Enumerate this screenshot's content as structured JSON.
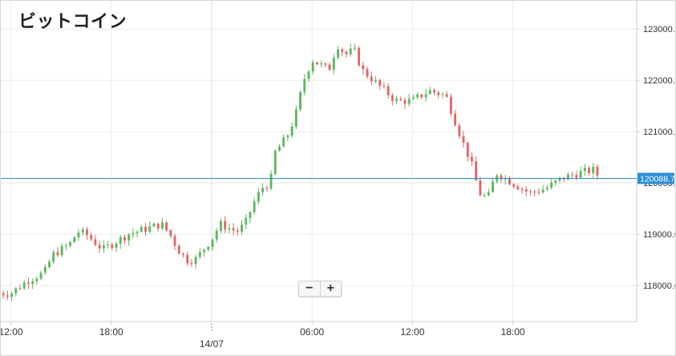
{
  "title": "ビットコイン",
  "zoom": {
    "minus_label": "−",
    "plus_label": "+"
  },
  "current_price": {
    "label": "120088.7",
    "value": 120088.7,
    "color": "#2a8fd4"
  },
  "colors": {
    "up": "#5cb85c",
    "down": "#e06666",
    "grid": "#ececec",
    "axis": "#cfcfcf",
    "price_line": "#2a8fd4"
  },
  "chart_data": {
    "type": "candlestick",
    "title": "ビットコイン",
    "y_axis": {
      "range": [
        117300,
        123550
      ],
      "ticks": [
        118000,
        119000,
        120000,
        121000,
        122000,
        123000
      ],
      "tick_labels": [
        "118000.0",
        "119000.0",
        "120000.0",
        "121000.0",
        "122000.0",
        "123000.0"
      ],
      "position": "right"
    },
    "x_axis": {
      "range_hours": [
        -12.6,
        25.4
      ],
      "ticks": [
        {
          "hour": -12,
          "label": "12:00"
        },
        {
          "hour": -6,
          "label": "18:00"
        },
        {
          "hour": 0,
          "label": "",
          "date": "14/07"
        },
        {
          "hour": 6,
          "label": "06:00"
        },
        {
          "hour": 12,
          "label": "12:00"
        },
        {
          "hour": 18,
          "label": "18:00"
        }
      ]
    },
    "grid": true,
    "anchors_close": [
      [
        -12.95,
        117850
      ],
      [
        -12.0,
        117850
      ],
      [
        -11.0,
        118100
      ],
      [
        -10.0,
        118250
      ],
      [
        -9.5,
        118600
      ],
      [
        -9.0,
        118700
      ],
      [
        -8.5,
        118800
      ],
      [
        -8.0,
        119050
      ],
      [
        -7.5,
        119000
      ],
      [
        -6.5,
        118700
      ],
      [
        -6.0,
        118800
      ],
      [
        -5.0,
        119000
      ],
      [
        -4.0,
        119100
      ],
      [
        -3.0,
        119200
      ],
      [
        -2.5,
        119000
      ],
      [
        -2.0,
        118700
      ],
      [
        -1.5,
        118500
      ],
      [
        -1.0,
        118500
      ],
      [
        0.0,
        118900
      ],
      [
        0.5,
        119200
      ],
      [
        1.5,
        119050
      ],
      [
        2.0,
        119200
      ],
      [
        2.5,
        119600
      ],
      [
        3.0,
        119900
      ],
      [
        3.5,
        120000
      ],
      [
        3.8,
        120600
      ],
      [
        4.5,
        120900
      ],
      [
        5.0,
        121300
      ],
      [
        5.5,
        122000
      ],
      [
        6.0,
        122400
      ],
      [
        6.5,
        122300
      ],
      [
        7.0,
        122200
      ],
      [
        7.5,
        122700
      ],
      [
        8.0,
        122500
      ],
      [
        8.5,
        122600
      ],
      [
        9.0,
        122200
      ],
      [
        10.0,
        121900
      ],
      [
        11.0,
        121600
      ],
      [
        12.0,
        121600
      ],
      [
        13.0,
        121800
      ],
      [
        14.0,
        121700
      ],
      [
        15.0,
        120800
      ],
      [
        15.5,
        120400
      ],
      [
        16.0,
        119800
      ],
      [
        16.5,
        119700
      ],
      [
        17.0,
        120200
      ],
      [
        18.0,
        120000
      ],
      [
        19.0,
        119800
      ],
      [
        20.0,
        119900
      ],
      [
        21.0,
        120100
      ],
      [
        22.0,
        120200
      ],
      [
        22.8,
        120250
      ],
      [
        23.25,
        120088.7
      ]
    ],
    "candle_interval_hours": 0.25
  }
}
